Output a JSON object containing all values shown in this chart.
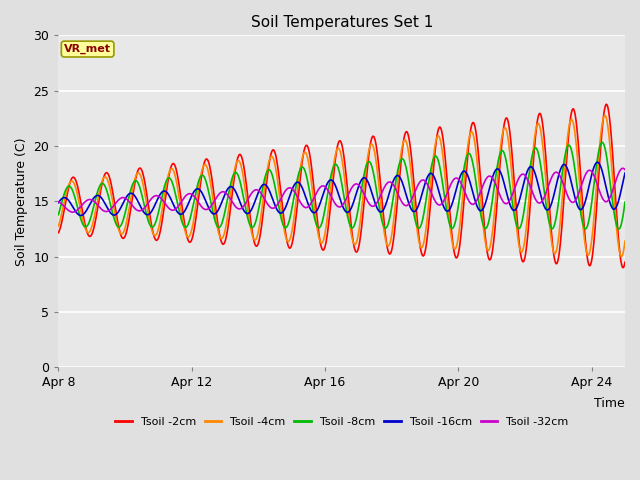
{
  "title": "Soil Temperatures Set 1",
  "xlabel": "Time",
  "ylabel": "Soil Temperature (C)",
  "xlim_days": [
    0,
    17.0
  ],
  "ylim": [
    0,
    30
  ],
  "yticks": [
    0,
    5,
    10,
    15,
    20,
    25,
    30
  ],
  "xtick_labels": [
    "Apr 8",
    "Apr 12",
    "Apr 16",
    "Apr 20",
    "Apr 24"
  ],
  "xtick_positions": [
    0,
    4,
    8,
    12,
    16
  ],
  "annotation_text": "VR_met",
  "annotation_color": "#8B0000",
  "annotation_bg": "#FFFF99",
  "fig_bg": "#E0E0E0",
  "plot_bg": "#E8E8E8",
  "colors": {
    "2cm": "#FF0000",
    "4cm": "#FF8800",
    "8cm": "#00BB00",
    "16cm": "#0000CC",
    "32cm": "#CC00CC"
  },
  "legend_labels": [
    "Tsoil -2cm",
    "Tsoil -4cm",
    "Tsoil -8cm",
    "Tsoil -16cm",
    "Tsoil -32cm"
  ],
  "linewidth": 1.2,
  "base_start": 14.5,
  "base_end": 16.5,
  "amp2_start": 2.5,
  "amp2_end": 7.5,
  "amp4_start": 2.2,
  "amp4_end": 6.5,
  "amp8_start": 1.8,
  "amp8_end": 4.0,
  "amp16_start": 0.8,
  "amp16_end": 2.2,
  "amp32_start": 0.5,
  "amp32_end": 1.5,
  "phase2": -1.2,
  "phase4": -0.9,
  "phase8": -0.4,
  "phase16": 0.5,
  "phase32": 2.0
}
